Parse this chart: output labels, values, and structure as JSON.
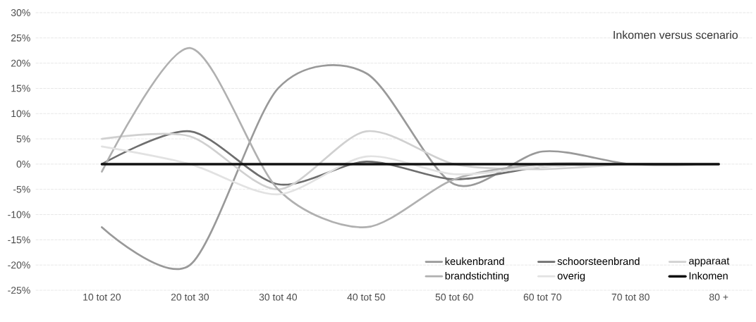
{
  "chart_data": {
    "type": "line",
    "title": "Inkomen versus scenario",
    "categories": [
      "10 tot 20",
      "20 tot 30",
      "30 tot 40",
      "40 tot 50",
      "50 tot 60",
      "60 tot 70",
      "70 tot 80",
      "80 +"
    ],
    "series": [
      {
        "name": "keukenbrand",
        "color": "#999999",
        "values": [
          -12.5,
          -20,
          15,
          18,
          -4,
          2.5,
          0,
          0
        ]
      },
      {
        "name": "schoorsteenbrand",
        "color": "#6e6e6e",
        "values": [
          0,
          6.5,
          -4,
          0.5,
          -3,
          -0.5,
          0,
          0
        ]
      },
      {
        "name": "apparaat",
        "color": "#d0d0d0",
        "values": [
          5,
          5.5,
          -5,
          6.5,
          0,
          -1,
          0,
          0
        ]
      },
      {
        "name": "brandstichting",
        "color": "#b0b0b0",
        "values": [
          -1.5,
          23,
          -5,
          -12.5,
          -3,
          0,
          0,
          0
        ]
      },
      {
        "name": "overig",
        "color": "#e2e2e2",
        "values": [
          3.5,
          0,
          -6,
          1.5,
          -2,
          -0.5,
          0,
          0
        ]
      },
      {
        "name": "Inkomen",
        "color": "#111111",
        "values": [
          0,
          0,
          0,
          0,
          0,
          0,
          0,
          0
        ]
      }
    ],
    "ylim": [
      -25,
      30
    ],
    "yticks": [
      {
        "value": -25,
        "label": "-25%"
      },
      {
        "value": -20,
        "label": "-20%"
      },
      {
        "value": -15,
        "label": "-15%"
      },
      {
        "value": -10,
        "label": "-10%"
      },
      {
        "value": -5,
        "label": "-5%"
      },
      {
        "value": 0,
        "label": "0%"
      },
      {
        "value": 5,
        "label": "5%"
      },
      {
        "value": 10,
        "label": "10%"
      },
      {
        "value": 15,
        "label": "15%"
      },
      {
        "value": 20,
        "label": "20%"
      },
      {
        "value": 25,
        "label": "25%"
      },
      {
        "value": 30,
        "label": "30%"
      }
    ],
    "grid": "y",
    "legend": "bottom right",
    "marker": "none",
    "line_style": "solid"
  }
}
